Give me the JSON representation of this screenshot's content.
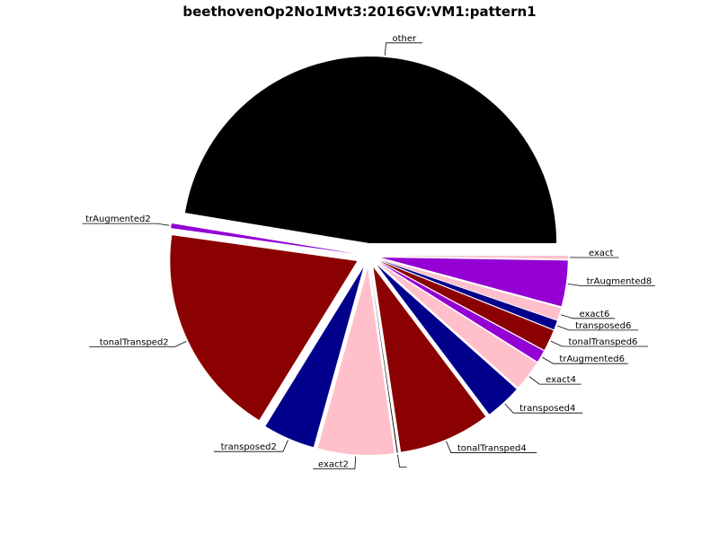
{
  "chart_data": {
    "type": "pie",
    "title": "beethovenOp2No1Mvt3:2016GV:VM1:pattern1",
    "slices": [
      {
        "label": "other",
        "value": 180,
        "color": "#000000"
      },
      {
        "label": "trAugmented2",
        "value": 1.5,
        "color": "#9400d3"
      },
      {
        "label": "tonalTransped2",
        "value": 70,
        "color": "#8b0000"
      },
      {
        "label": "transposed2",
        "value": 17,
        "color": "#00008b"
      },
      {
        "label": "exact2",
        "value": 25,
        "color": "#ffc0cb"
      },
      {
        "label": "",
        "value": 0.3,
        "color": "#000000"
      },
      {
        "label": "tonalTransped4",
        "value": 30,
        "color": "#8b0000"
      },
      {
        "label": "transposed4",
        "value": 12,
        "color": "#00008b"
      },
      {
        "label": "exact4",
        "value": 10,
        "color": "#ffc0cb"
      },
      {
        "label": "trAugmented6",
        "value": 4,
        "color": "#9400d3"
      },
      {
        "label": "tonalTransped6",
        "value": 7,
        "color": "#8b0000"
      },
      {
        "label": "transposed6",
        "value": 3,
        "color": "#00008b"
      },
      {
        "label": "exact6",
        "value": 4,
        "color": "#ffc0cb"
      },
      {
        "label": "trAugmented8",
        "value": 15,
        "color": "#9400d3"
      },
      {
        "label": "exact",
        "value": 1,
        "color": "#ffc0cb"
      }
    ],
    "start_angle_deg": 0,
    "direction": "counterclockwise",
    "exploded": true,
    "legend": "none"
  }
}
